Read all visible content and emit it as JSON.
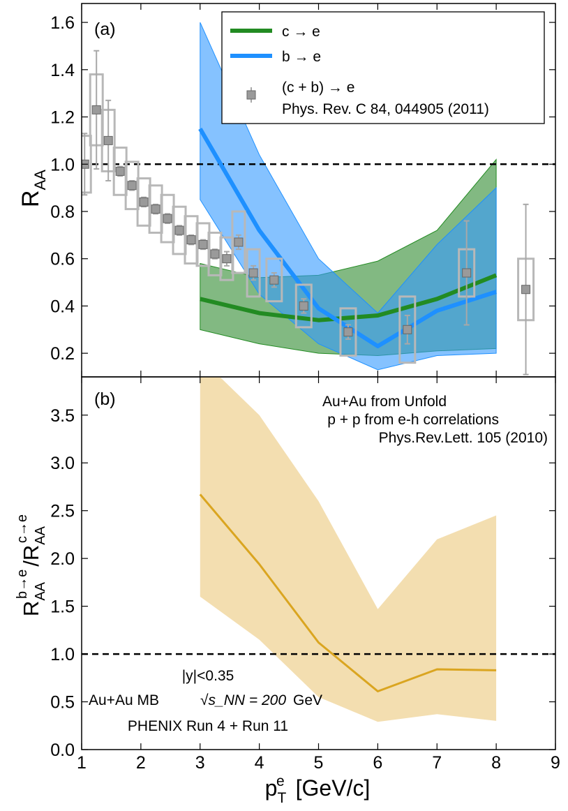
{
  "chart_data": [
    {
      "type": "line",
      "panel_label": "(a)",
      "ylabel": "R_AA",
      "ylim": [
        0.1,
        1.68
      ],
      "xlim": [
        1,
        9
      ],
      "yticks": [
        "0.2",
        "0.4",
        "0.6",
        "0.8",
        "1.0",
        "1.2",
        "1.4",
        "1.6"
      ],
      "reference_line": 1.0,
      "legend": {
        "position": "top-right",
        "entries": [
          {
            "key": "c",
            "label": "c → e"
          },
          {
            "key": "b",
            "label": "b → e"
          },
          {
            "key": "cb",
            "label": "(c + b) → e",
            "label2": "Phys. Rev. C 84, 044905 (2011)"
          }
        ]
      },
      "series": [
        {
          "name": "c → e",
          "color": "#228b22",
          "x": [
            3,
            4,
            5,
            6,
            7,
            8
          ],
          "values": [
            0.43,
            0.37,
            0.34,
            0.36,
            0.43,
            0.53
          ],
          "band_upper": [
            0.58,
            0.52,
            0.53,
            0.59,
            0.72,
            1.02
          ],
          "band_lower": [
            0.3,
            0.24,
            0.2,
            0.19,
            0.21,
            0.22
          ]
        },
        {
          "name": "b → e",
          "color": "#1e90ff",
          "x": [
            3,
            4,
            5,
            6,
            7,
            8
          ],
          "values": [
            1.15,
            0.72,
            0.39,
            0.23,
            0.38,
            0.46
          ],
          "band_upper": [
            1.6,
            1.04,
            0.6,
            0.37,
            0.66,
            0.9
          ],
          "band_lower": [
            0.85,
            0.45,
            0.24,
            0.13,
            0.19,
            0.2
          ]
        }
      ],
      "points": {
        "name": "(c + b) → e",
        "x": [
          1.05,
          1.25,
          1.45,
          1.65,
          1.85,
          2.05,
          2.25,
          2.45,
          2.65,
          2.85,
          3.05,
          3.25,
          3.45,
          3.65,
          3.9,
          4.25,
          4.75,
          5.5,
          6.5,
          7.5,
          8.5
        ],
        "y": [
          1.0,
          1.23,
          1.1,
          0.97,
          0.91,
          0.84,
          0.81,
          0.77,
          0.72,
          0.68,
          0.66,
          0.62,
          0.6,
          0.67,
          0.54,
          0.51,
          0.4,
          0.29,
          0.3,
          0.54,
          0.47
        ],
        "stat_err": [
          0.13,
          0.25,
          0.17,
          0.02,
          0.02,
          0.02,
          0.02,
          0.02,
          0.02,
          0.02,
          0.02,
          0.02,
          0.03,
          0.03,
          0.03,
          0.03,
          0.03,
          0.03,
          0.06,
          0.22,
          0.36
        ],
        "sys_err": [
          0.12,
          0.15,
          0.13,
          0.1,
          0.1,
          0.1,
          0.1,
          0.1,
          0.1,
          0.1,
          0.09,
          0.09,
          0.09,
          0.13,
          0.1,
          0.09,
          0.09,
          0.1,
          0.14,
          0.1,
          0.13
        ]
      }
    },
    {
      "type": "line",
      "panel_label": "(b)",
      "ylabel": "R_AA^{b→e} / R_AA^{c→e}",
      "xlabel": "p_T^e [GeV/c]",
      "xlim": [
        1,
        9
      ],
      "ylim": [
        0,
        3.9
      ],
      "xticks": [
        "1",
        "2",
        "3",
        "4",
        "5",
        "6",
        "7",
        "8",
        "9"
      ],
      "yticks": [
        "0.0",
        "0.5",
        "1.0",
        "1.5",
        "2.0",
        "2.5",
        "3.0",
        "3.5"
      ],
      "reference_line": 1.0,
      "series": [
        {
          "name": "",
          "color": "#daa520",
          "band_color": "#f3deb0",
          "x": [
            3,
            4,
            5,
            6,
            7,
            8
          ],
          "values": [
            2.67,
            1.94,
            1.12,
            0.61,
            0.84,
            0.83
          ],
          "band_upper": [
            4.1,
            3.5,
            2.6,
            1.47,
            2.2,
            2.45
          ],
          "band_lower": [
            1.6,
            1.15,
            0.55,
            0.29,
            0.37,
            0.3
          ]
        }
      ],
      "annotations_top": [
        "Au+Au from Unfold",
        "p + p from e-h correlations",
        "Phys.Rev.Lett. 105 (2010)"
      ],
      "annotations_bottom": [
        "|y|<0.35",
        "Au+Au MB",
        "√s_NN = 200",
        "GeV",
        "PHENIX Run 4 + Run 11"
      ]
    }
  ]
}
